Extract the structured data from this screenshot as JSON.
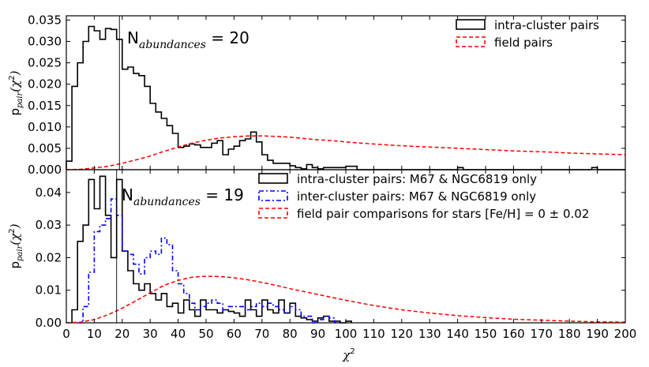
{
  "chart_data": [
    {
      "type": "histogram",
      "panel": "top",
      "annotation": {
        "prefix": "N",
        "subscript": "abundances",
        "suffix": " = 20"
      },
      "ylabel": {
        "main": "p",
        "sub": "pair",
        "paren": "(χ",
        "sup": "2",
        "close": ")"
      },
      "ylim": [
        0,
        0.036
      ],
      "yticks": [
        0.0,
        0.005,
        0.01,
        0.015,
        0.02,
        0.025,
        0.03,
        0.035
      ],
      "ytick_labels": [
        "0.000",
        "0.005",
        "0.010",
        "0.015",
        "0.020",
        "0.025",
        "0.030",
        "0.035"
      ],
      "xlim": [
        0,
        200
      ],
      "vline_x": 19,
      "legend": {
        "position": "top-right",
        "entries": [
          {
            "label": "intra-cluster pairs",
            "color": "#000000",
            "style": "solid"
          },
          {
            "label": "field pairs",
            "color": "#ff0000",
            "style": "dashed"
          }
        ]
      },
      "series": [
        {
          "name": "intra-cluster pairs",
          "color": "#000000",
          "style": "solid",
          "kind": "step",
          "bin_width": 2,
          "bin_start": 0,
          "values": [
            0.002,
            0.0195,
            0.025,
            0.03,
            0.0335,
            0.0325,
            0.0305,
            0.033,
            0.0328,
            0.0305,
            0.0235,
            0.024,
            0.0225,
            0.022,
            0.0195,
            0.0155,
            0.0135,
            0.012,
            0.0103,
            0.0085,
            0.0052,
            0.0055,
            0.006,
            0.0058,
            0.0052,
            0.0052,
            0.0062,
            0.0068,
            0.0035,
            0.0048,
            0.0055,
            0.0068,
            0.0072,
            0.0088,
            0.0065,
            0.0035,
            0.0022,
            0.0015,
            0.0015,
            0.0015,
            0.0009,
            0.0005,
            0.0002,
            0.0012,
            0.0005,
            0.0002,
            0.0005,
            0.0005,
            0.0005,
            0.0005,
            0.0008,
            0.0008,
            0.0,
            0.0,
            0.0,
            0.0,
            0.0,
            0.0,
            0.0,
            0.0,
            0.0,
            0.0,
            0.0,
            0.0,
            0.0,
            0.0,
            0.0,
            0.0,
            0.0,
            0.0,
            0.0005,
            0.0,
            0.0,
            0.0,
            0.0,
            0.0,
            0.0,
            0.0,
            0.0,
            0.0,
            0.0,
            0.0,
            0.0,
            0.0,
            0.0,
            0.0,
            0.0,
            0.0,
            0.0,
            0.0,
            0.0,
            0.0,
            0.0,
            0.0,
            0.0005,
            0.0,
            0.0,
            0.0,
            0.0,
            0.0
          ]
        },
        {
          "name": "field pairs",
          "color": "#ff0000",
          "style": "dashed",
          "kind": "curve",
          "x": [
            0,
            5,
            10,
            15,
            20,
            25,
            30,
            35,
            40,
            45,
            50,
            55,
            60,
            65,
            70,
            75,
            80,
            85,
            90,
            95,
            100,
            110,
            120,
            130,
            140,
            150,
            160,
            170,
            180,
            190,
            200
          ],
          "y": [
            0.0,
            0.0001,
            0.0004,
            0.0008,
            0.0015,
            0.0023,
            0.0032,
            0.0043,
            0.0053,
            0.0062,
            0.0069,
            0.0074,
            0.0077,
            0.0079,
            0.0079,
            0.0078,
            0.0076,
            0.0073,
            0.007,
            0.0068,
            0.0065,
            0.006,
            0.0056,
            0.0053,
            0.005,
            0.0047,
            0.0044,
            0.0042,
            0.0039,
            0.0037,
            0.0035
          ]
        }
      ]
    },
    {
      "type": "histogram",
      "panel": "bottom",
      "annotation": {
        "prefix": "N",
        "subscript": "abundances",
        "suffix": " = 19"
      },
      "ylabel": {
        "main": "p",
        "sub": "pair",
        "paren": "(χ",
        "sup": "2",
        "close": ")"
      },
      "ylim": [
        0,
        0.047
      ],
      "yticks": [
        0.0,
        0.01,
        0.02,
        0.03,
        0.04
      ],
      "ytick_labels": [
        "0.00",
        "0.01",
        "0.02",
        "0.03",
        "0.04"
      ],
      "xlim": [
        0,
        200
      ],
      "xticks": [
        0,
        10,
        20,
        30,
        40,
        50,
        60,
        70,
        80,
        90,
        100,
        110,
        120,
        130,
        140,
        150,
        160,
        170,
        180,
        190,
        200
      ],
      "xtick_labels": [
        "0",
        "10",
        "20",
        "30",
        "40",
        "50",
        "60",
        "70",
        "80",
        "90",
        "100",
        "110",
        "120",
        "130",
        "140",
        "150",
        "160",
        "170",
        "180",
        "190",
        "200"
      ],
      "xlabel": {
        "main": "χ",
        "sup": "2"
      },
      "vline_x": 18,
      "legend": {
        "position": "top-right",
        "entries": [
          {
            "label": "intra-cluster pairs: M67 & NGC6819 only",
            "color": "#000000",
            "style": "solid"
          },
          {
            "label": "inter-cluster pairs: M67 & NGC6819 only",
            "color": "#0000ff",
            "style": "dashdot"
          },
          {
            "label": "field pair comparisons for stars [Fe/H] = 0 ± 0.02",
            "color": "#ff0000",
            "style": "dashed"
          }
        ]
      },
      "series": [
        {
          "name": "intra-cluster pairs: M67 & NGC6819 only",
          "color": "#000000",
          "style": "solid",
          "kind": "step",
          "bin_width": 2,
          "bin_start": 2,
          "values": [
            0.004,
            0.025,
            0.03,
            0.044,
            0.035,
            0.045,
            0.033,
            0.02,
            0.044,
            0.022,
            0.016,
            0.012,
            0.01,
            0.012,
            0.009,
            0.007,
            0.009,
            0.005,
            0.006,
            0.003,
            0.007,
            0.004,
            0.002,
            0.007,
            0.004,
            0.004,
            0.003,
            0.004,
            0.0035,
            0.003,
            0.002,
            0.007,
            0.004,
            0.002,
            0.007,
            0.004,
            0.003,
            0.007,
            0.003,
            0.006,
            0.002,
            0.0015,
            0.001,
            0.0005,
            0.0015,
            0.002,
            0.0005,
            0.0005,
            0.0,
            0.0005
          ]
        },
        {
          "name": "inter-cluster pairs: M67 & NGC6819 only",
          "color": "#0000ff",
          "style": "dashdot",
          "kind": "step",
          "bin_width": 2,
          "bin_start": 4,
          "values": [
            0.0,
            0.005,
            0.0155,
            0.028,
            0.03,
            0.032,
            0.038,
            0.033,
            0.022,
            0.021,
            0.018,
            0.015,
            0.02,
            0.022,
            0.021,
            0.026,
            0.024,
            0.016,
            0.012,
            0.009,
            0.006,
            0.004,
            0.005,
            0.006,
            0.007,
            0.006,
            0.004,
            0.005,
            0.005,
            0.005,
            0.004,
            0.005,
            0.006,
            0.005,
            0.006,
            0.005,
            0.004,
            0.003,
            0.005,
            0.004,
            0.002,
            0.002,
            0.0,
            0.001,
            0.002,
            0.0015,
            0.0
          ]
        },
        {
          "name": "field pair comparisons for stars [Fe/H] = 0 ± 0.02",
          "color": "#ff0000",
          "style": "dashed",
          "kind": "curve",
          "x": [
            0,
            5,
            10,
            15,
            20,
            25,
            30,
            35,
            40,
            45,
            50,
            55,
            60,
            65,
            70,
            75,
            80,
            90,
            100,
            110,
            120,
            130,
            140,
            150,
            160,
            170,
            180,
            190,
            200
          ],
          "y": [
            0.0,
            0.0002,
            0.001,
            0.0025,
            0.0045,
            0.0068,
            0.0092,
            0.0115,
            0.013,
            0.014,
            0.0143,
            0.0142,
            0.0138,
            0.0132,
            0.0124,
            0.0115,
            0.0105,
            0.0087,
            0.0069,
            0.0053,
            0.004,
            0.003,
            0.0022,
            0.0016,
            0.0011,
            0.0008,
            0.0005,
            0.0003,
            0.0002
          ]
        }
      ]
    }
  ]
}
